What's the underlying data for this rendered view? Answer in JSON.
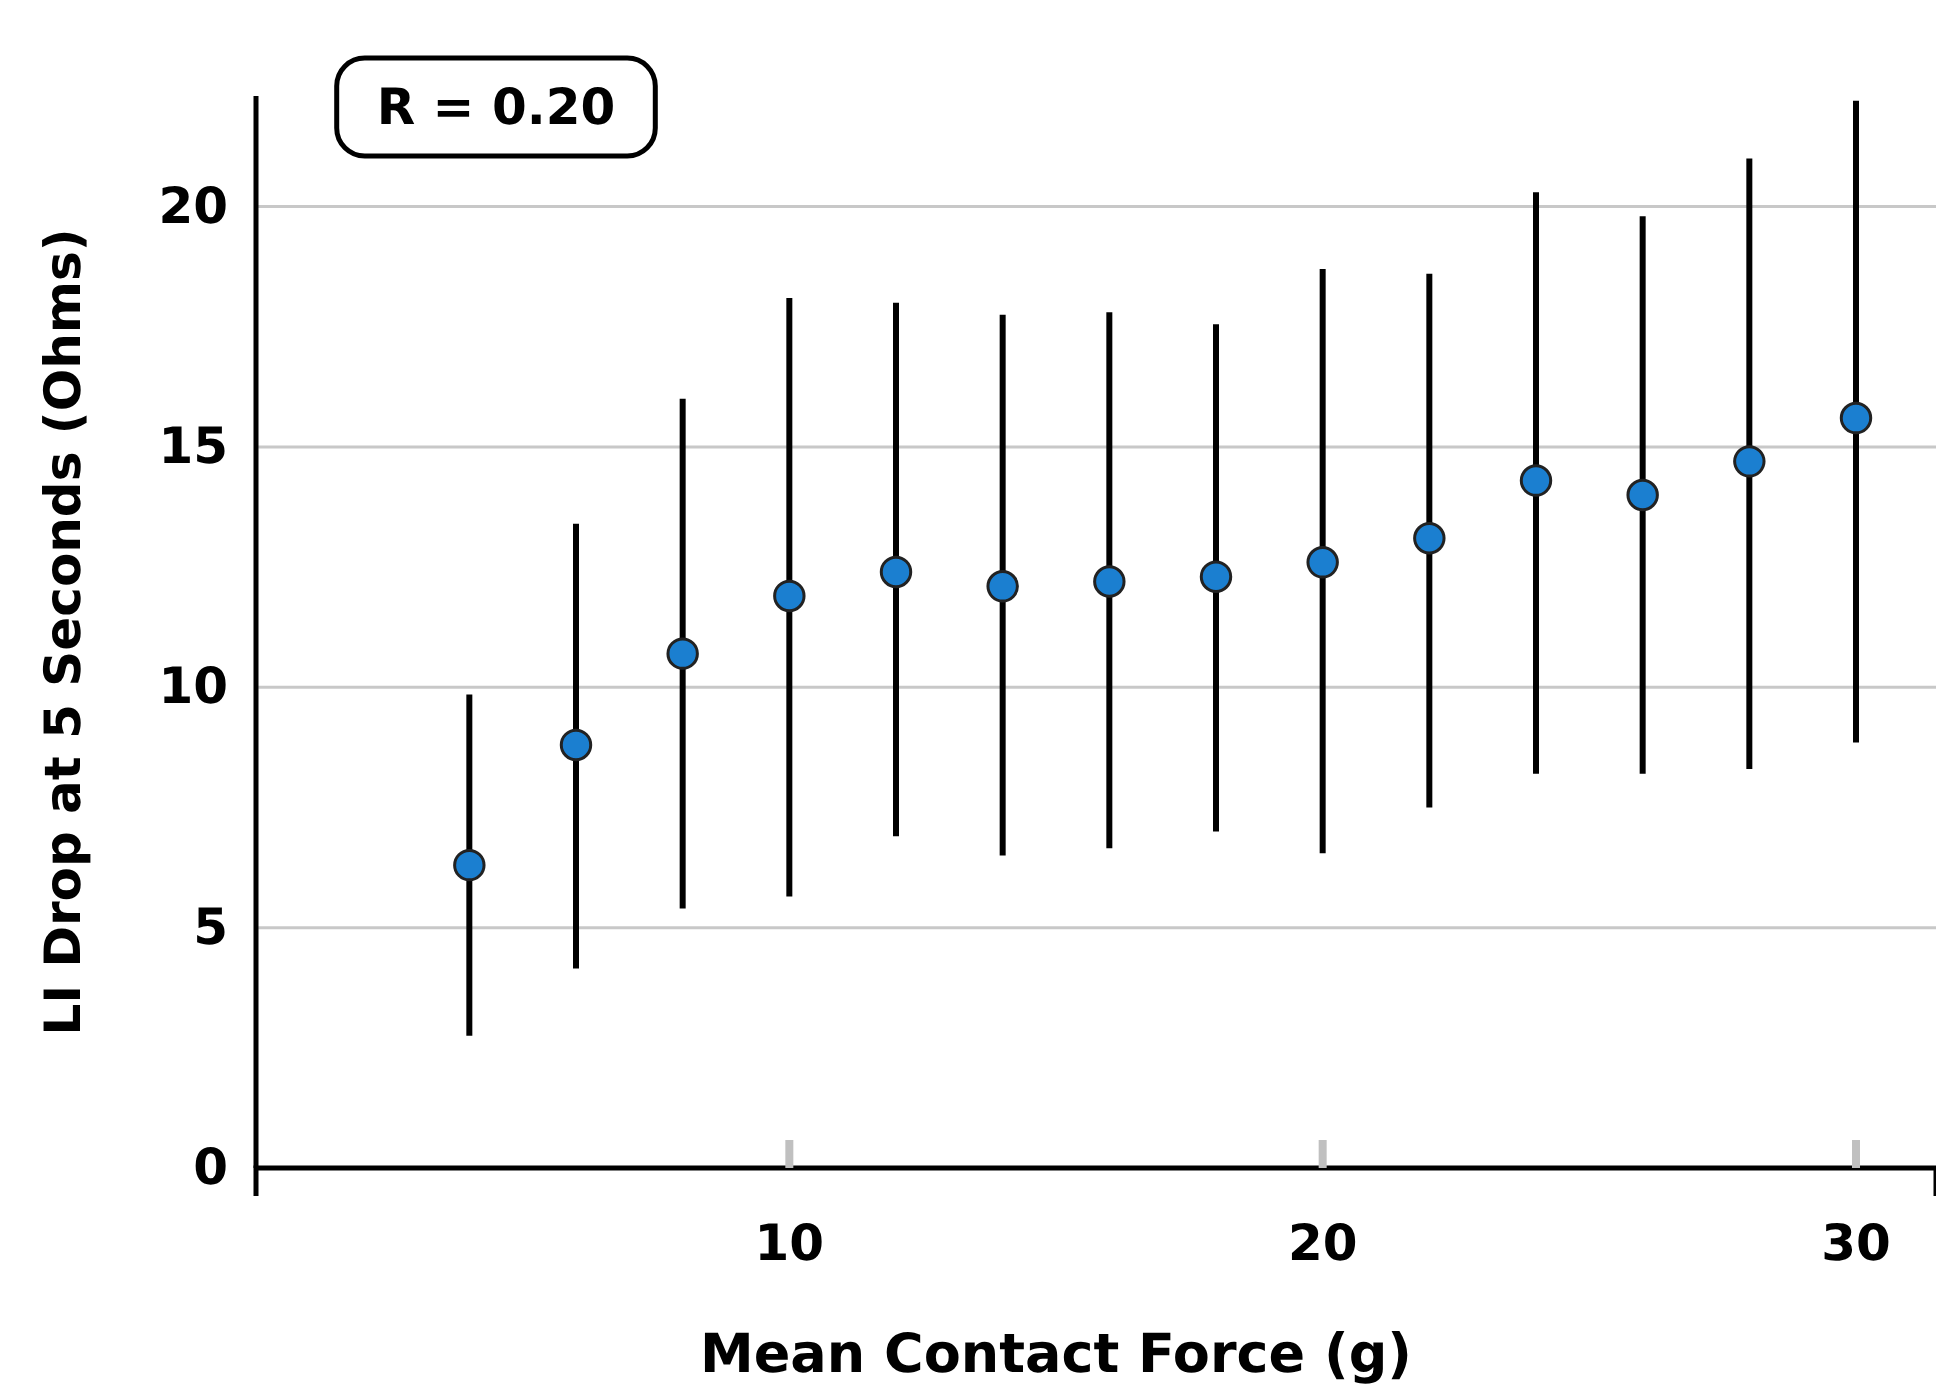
{
  "chart_data": {
    "type": "scatter",
    "xlabel": "Mean Contact Force (g)",
    "ylabel": "LI Drop at 5 Seconds (Ohms)",
    "annotations": [
      "R = 0.20"
    ],
    "x": [
      4,
      6,
      8,
      10,
      12,
      14,
      16,
      18,
      20,
      22,
      24,
      26,
      28,
      30
    ],
    "series": [
      {
        "color": "#1b7fd0",
        "values": [
          6.3,
          8.8,
          10.7,
          11.9,
          12.4,
          12.1,
          12.2,
          12.3,
          12.6,
          13.1,
          14.3,
          14.0,
          14.7,
          15.6
        ],
        "errors": [
          [
            2.75,
            9.85
          ],
          [
            4.15,
            13.4
          ],
          [
            5.4,
            16.0
          ],
          [
            5.65,
            18.1
          ],
          [
            6.9,
            18.0
          ],
          [
            6.5,
            17.75
          ],
          [
            6.65,
            17.8
          ],
          [
            7.0,
            17.55
          ],
          [
            6.55,
            18.7
          ],
          [
            7.5,
            18.6
          ],
          [
            8.2,
            20.3
          ],
          [
            8.2,
            19.8
          ],
          [
            8.3,
            21.0
          ],
          [
            8.85,
            22.2
          ]
        ]
      }
    ],
    "xlim": [
      0,
      31.5
    ],
    "ylim": [
      0,
      22.3
    ],
    "xticks": [
      10,
      20,
      30
    ],
    "yticks": [
      0,
      5,
      10,
      15,
      20
    ],
    "grid": "y",
    "marker": "circle"
  }
}
